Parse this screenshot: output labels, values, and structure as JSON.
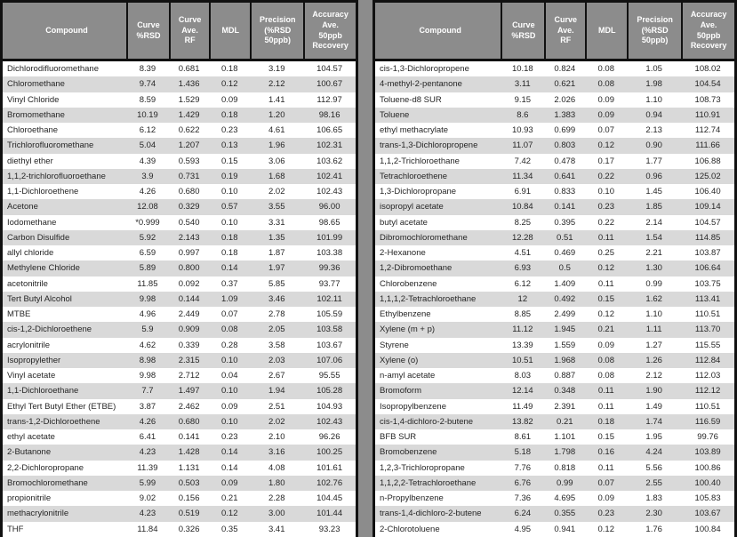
{
  "columns": [
    "Compound",
    "Curve\n%RSD",
    "Curve\nAve.\nRF",
    "MDL",
    "Precision\n(%RSD\n50ppb)",
    "Accuracy\nAve.\n50ppb\nRecovery"
  ],
  "colors": {
    "header_bg": "#8c8c8c",
    "divider_bg": "#8c8c8c",
    "alt_row_bg": "#d9d9d9",
    "border": "#111111",
    "header_text": "#ffffff",
    "body_text": "#262626"
  },
  "tables": [
    {
      "name": "left",
      "rows": [
        [
          "Dichlorodifluoromethane",
          "8.39",
          "0.681",
          "0.18",
          "3.19",
          "104.57"
        ],
        [
          "Chloromethane",
          "9.74",
          "1.436",
          "0.12",
          "2.12",
          "100.67"
        ],
        [
          "Vinyl Chloride",
          "8.59",
          "1.529",
          "0.09",
          "1.41",
          "112.97"
        ],
        [
          "Bromomethane",
          "10.19",
          "1.429",
          "0.18",
          "1.20",
          "98.16"
        ],
        [
          "Chloroethane",
          "6.12",
          "0.622",
          "0.23",
          "4.61",
          "106.65"
        ],
        [
          "Trichlorofluoromethane",
          "5.04",
          "1.207",
          "0.13",
          "1.96",
          "102.31"
        ],
        [
          "diethyl ether",
          "4.39",
          "0.593",
          "0.15",
          "3.06",
          "103.62"
        ],
        [
          "1,1,2-trichlorofluoroethane",
          "3.9",
          "0.731",
          "0.19",
          "1.68",
          "102.41"
        ],
        [
          "1,1-Dichloroethene",
          "4.26",
          "0.680",
          "0.10",
          "2.02",
          "102.43"
        ],
        [
          "Acetone",
          "12.08",
          "0.329",
          "0.57",
          "3.55",
          "96.00"
        ],
        [
          "Iodomethane",
          "*0.999",
          "0.540",
          "0.10",
          "3.31",
          "98.65"
        ],
        [
          "Carbon Disulfide",
          "5.92",
          "2.143",
          "0.18",
          "1.35",
          "101.99"
        ],
        [
          "allyl chloride",
          "6.59",
          "0.997",
          "0.18",
          "1.87",
          "103.38"
        ],
        [
          "Methylene Chloride",
          "5.89",
          "0.800",
          "0.14",
          "1.97",
          "99.36"
        ],
        [
          "acetonitrile",
          "11.85",
          "0.092",
          "0.37",
          "5.85",
          "93.77"
        ],
        [
          "Tert Butyl Alcohol",
          "9.98",
          "0.144",
          "1.09",
          "3.46",
          "102.11"
        ],
        [
          "MTBE",
          "4.96",
          "2.449",
          "0.07",
          "2.78",
          "105.59"
        ],
        [
          "cis-1,2-Dichloroethene",
          "5.9",
          "0.909",
          "0.08",
          "2.05",
          "103.58"
        ],
        [
          "acrylonitrile",
          "4.62",
          "0.339",
          "0.28",
          "3.58",
          "103.67"
        ],
        [
          "Isopropylether",
          "8.98",
          "2.315",
          "0.10",
          "2.03",
          "107.06"
        ],
        [
          "Vinyl acetate",
          "9.98",
          "2.712",
          "0.04",
          "2.67",
          "95.55"
        ],
        [
          "1,1-Dichloroethane",
          "7.7",
          "1.497",
          "0.10",
          "1.94",
          "105.28"
        ],
        [
          "Ethyl Tert Butyl Ether (ETBE)",
          "3.87",
          "2.462",
          "0.09",
          "2.51",
          "104.93"
        ],
        [
          "trans-1,2-Dichloroethene",
          "4.26",
          "0.680",
          "0.10",
          "2.02",
          "102.43"
        ],
        [
          "ethyl acetate",
          "6.41",
          "0.141",
          "0.23",
          "2.10",
          "96.26"
        ],
        [
          "2-Butanone",
          "4.23",
          "1.428",
          "0.14",
          "3.16",
          "100.25"
        ],
        [
          "2,2-Dichloropropane",
          "11.39",
          "1.131",
          "0.14",
          "4.08",
          "101.61"
        ],
        [
          "Bromochloromethane",
          "5.99",
          "0.503",
          "0.09",
          "1.80",
          "102.76"
        ],
        [
          "propionitrile",
          "9.02",
          "0.156",
          "0.21",
          "2.28",
          "104.45"
        ],
        [
          "methacrylonitrile",
          "4.23",
          "0.519",
          "0.12",
          "3.00",
          "101.44"
        ],
        [
          "THF",
          "11.84",
          "0.326",
          "0.35",
          "3.41",
          "93.23"
        ]
      ]
    },
    {
      "name": "right",
      "rows": [
        [
          "cis-1,3-Dichloropropene",
          "10.18",
          "0.824",
          "0.08",
          "1.05",
          "108.02"
        ],
        [
          "4-methyl-2-pentanone",
          "3.11",
          "0.621",
          "0.08",
          "1.98",
          "104.54"
        ],
        [
          "Toluene-d8 SUR",
          "9.15",
          "2.026",
          "0.09",
          "1.10",
          "108.73"
        ],
        [
          "Toluene",
          "8.6",
          "1.383",
          "0.09",
          "0.94",
          "110.91"
        ],
        [
          "ethyl methacrylate",
          "10.93",
          "0.699",
          "0.07",
          "2.13",
          "112.74"
        ],
        [
          "trans-1,3-Dichloropropene",
          "11.07",
          "0.803",
          "0.12",
          "0.90",
          "111.66"
        ],
        [
          "1,1,2-Trichloroethane",
          "7.42",
          "0.478",
          "0.17",
          "1.77",
          "106.88"
        ],
        [
          "Tetrachloroethene",
          "11.34",
          "0.641",
          "0.22",
          "0.96",
          "125.02"
        ],
        [
          "1,3-Dichloropropane",
          "6.91",
          "0.833",
          "0.10",
          "1.45",
          "106.40"
        ],
        [
          "isopropyl acetate",
          "10.84",
          "0.141",
          "0.23",
          "1.85",
          "109.14"
        ],
        [
          "butyl acetate",
          "8.25",
          "0.395",
          "0.22",
          "2.14",
          "104.57"
        ],
        [
          "Dibromochloromethane",
          "12.28",
          "0.51",
          "0.11",
          "1.54",
          "114.85"
        ],
        [
          "2-Hexanone",
          "4.51",
          "0.469",
          "0.25",
          "2.21",
          "103.87"
        ],
        [
          "1,2-Dibromoethane",
          "6.93",
          "0.5",
          "0.12",
          "1.30",
          "106.64"
        ],
        [
          "Chlorobenzene",
          "6.12",
          "1.409",
          "0.11",
          "0.99",
          "103.75"
        ],
        [
          "1,1,1,2-Tetrachloroethane",
          "12",
          "0.492",
          "0.15",
          "1.62",
          "113.41"
        ],
        [
          "Ethylbenzene",
          "8.85",
          "2.499",
          "0.12",
          "1.10",
          "110.51"
        ],
        [
          "Xylene (m + p)",
          "11.12",
          "1.945",
          "0.21",
          "1.11",
          "113.70"
        ],
        [
          "Styrene",
          "13.39",
          "1.559",
          "0.09",
          "1.27",
          "115.55"
        ],
        [
          "Xylene (o)",
          "10.51",
          "1.968",
          "0.08",
          "1.26",
          "112.84"
        ],
        [
          "n-amyl acetate",
          "8.03",
          "0.887",
          "0.08",
          "2.12",
          "112.03"
        ],
        [
          "Bromoform",
          "12.14",
          "0.348",
          "0.11",
          "1.90",
          "112.12"
        ],
        [
          "Isopropylbenzene",
          "11.49",
          "2.391",
          "0.11",
          "1.49",
          "110.51"
        ],
        [
          "cis-1,4-dichloro-2-butene",
          "13.82",
          "0.21",
          "0.18",
          "1.74",
          "116.59"
        ],
        [
          "BFB SUR",
          "8.61",
          "1.101",
          "0.15",
          "1.95",
          "99.76"
        ],
        [
          "Bromobenzene",
          "5.18",
          "1.798",
          "0.16",
          "4.24",
          "103.89"
        ],
        [
          "1,2,3-Trichloropropane",
          "7.76",
          "0.818",
          "0.11",
          "5.56",
          "100.86"
        ],
        [
          "1,1,2,2-Tetrachloroethane",
          "6.76",
          "0.99",
          "0.07",
          "2.55",
          "100.40"
        ],
        [
          "n-Propylbenzene",
          "7.36",
          "4.695",
          "0.09",
          "1.83",
          "105.83"
        ],
        [
          "trans-1,4-dichloro-2-butene",
          "6.24",
          "0.355",
          "0.23",
          "2.30",
          "103.67"
        ],
        [
          "2-Chlorotoluene",
          "4.95",
          "0.941",
          "0.12",
          "1.76",
          "100.84"
        ]
      ]
    }
  ]
}
